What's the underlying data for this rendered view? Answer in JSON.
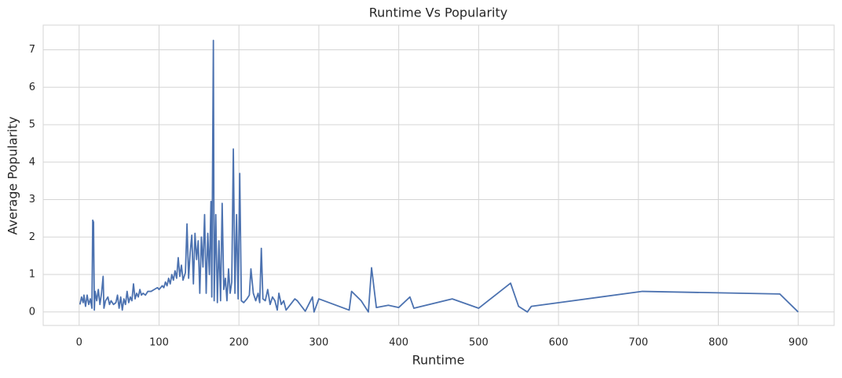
{
  "chart_data": {
    "type": "line",
    "title": "Runtime Vs Popularity",
    "x_label": "Runtime",
    "y_label": "Average Popularity",
    "x": [
      1,
      3,
      5,
      6,
      8,
      10,
      12,
      14,
      16,
      17,
      18,
      19,
      20,
      22,
      24,
      26,
      28,
      30,
      31,
      33,
      36,
      38,
      40,
      43,
      46,
      48,
      50,
      52,
      54,
      56,
      58,
      60,
      62,
      64,
      66,
      68,
      70,
      72,
      74,
      76,
      78,
      80,
      83,
      86,
      90,
      94,
      98,
      100,
      104,
      106,
      108,
      110,
      112,
      114,
      116,
      118,
      120,
      122,
      124,
      126,
      128,
      130,
      133,
      135,
      137,
      139,
      141,
      143,
      145,
      147,
      149,
      151,
      153,
      155,
      157,
      159,
      161,
      163,
      165,
      166,
      168,
      169,
      171,
      173,
      175,
      177,
      179,
      181,
      183,
      185,
      187,
      189,
      191,
      193,
      195,
      197,
      199,
      201,
      203,
      206,
      210,
      213,
      215,
      218,
      221,
      224,
      226,
      228,
      230,
      233,
      236,
      239,
      242,
      245,
      248,
      250,
      253,
      256,
      259,
      270,
      273,
      283,
      292,
      294,
      300,
      338,
      341,
      353,
      362,
      366,
      372,
      387,
      400,
      414,
      419,
      467,
      500,
      540,
      550,
      561,
      566,
      705,
      877,
      900
    ],
    "series": [
      {
        "name": "Average Popularity",
        "color": "#4c72b0",
        "values": [
          0.2,
          0.4,
          0.25,
          0.45,
          0.15,
          0.45,
          0.2,
          0.35,
          0.1,
          2.45,
          2.4,
          0.05,
          0.55,
          0.3,
          0.6,
          0.2,
          0.5,
          0.95,
          0.1,
          0.3,
          0.4,
          0.2,
          0.3,
          0.2,
          0.25,
          0.45,
          0.1,
          0.4,
          0.05,
          0.35,
          0.2,
          0.55,
          0.25,
          0.4,
          0.3,
          0.75,
          0.35,
          0.5,
          0.4,
          0.6,
          0.45,
          0.5,
          0.45,
          0.55,
          0.55,
          0.6,
          0.65,
          0.6,
          0.7,
          0.65,
          0.8,
          0.7,
          0.9,
          0.75,
          1.0,
          0.85,
          1.1,
          0.9,
          1.45,
          0.95,
          1.25,
          0.85,
          1.05,
          2.35,
          0.9,
          1.6,
          2.05,
          0.75,
          2.1,
          1.4,
          1.9,
          0.5,
          2.0,
          1.2,
          2.6,
          0.5,
          2.1,
          1.0,
          2.95,
          0.4,
          7.25,
          0.3,
          2.6,
          0.25,
          1.9,
          0.3,
          2.9,
          0.6,
          0.9,
          0.3,
          1.15,
          0.5,
          0.8,
          4.35,
          0.5,
          2.6,
          0.35,
          3.7,
          0.3,
          0.25,
          0.35,
          0.45,
          1.15,
          0.5,
          0.3,
          0.5,
          0.25,
          1.7,
          0.35,
          0.3,
          0.6,
          0.2,
          0.4,
          0.3,
          0.05,
          0.5,
          0.2,
          0.3,
          0.05,
          0.35,
          0.3,
          0.02,
          0.4,
          0.0,
          0.35,
          0.05,
          0.55,
          0.3,
          0.0,
          1.18,
          0.12,
          0.18,
          0.12,
          0.4,
          0.1,
          0.35,
          0.1,
          0.77,
          0.15,
          0.0,
          0.15,
          0.55,
          0.48,
          0.0
        ]
      }
    ],
    "xlim": [
      -45,
      945
    ],
    "ylim": [
      -0.36,
      7.66
    ],
    "xticks": [
      0,
      100,
      200,
      300,
      400,
      500,
      600,
      700,
      800,
      900
    ],
    "yticks": [
      0,
      1,
      2,
      3,
      4,
      5,
      6,
      7
    ],
    "grid": true
  }
}
